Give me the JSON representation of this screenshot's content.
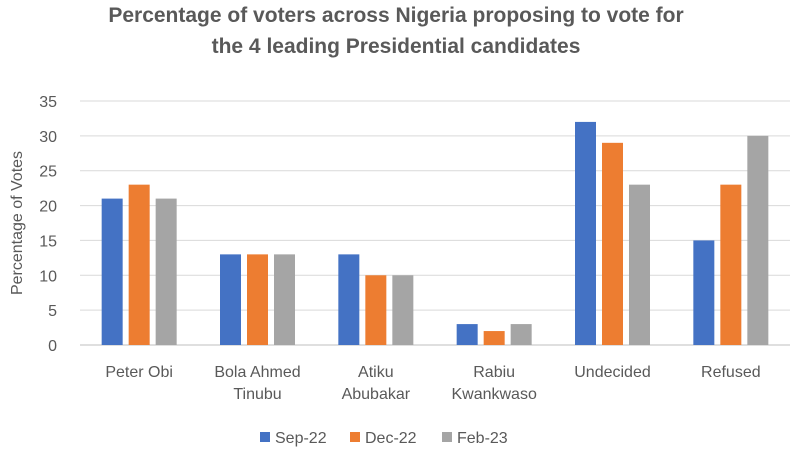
{
  "chart_data": {
    "type": "bar",
    "title_lines": [
      "Percentage of voters across Nigeria proposing to vote for",
      "the 4 leading Presidential candidates"
    ],
    "ylabel": "Percentage of Votes",
    "xlabel": "",
    "ylim": [
      0,
      35
    ],
    "yticks": [
      0,
      5,
      10,
      15,
      20,
      25,
      30,
      35
    ],
    "grid": true,
    "legend_position": "bottom",
    "categories": [
      [
        "Peter Obi"
      ],
      [
        "Bola Ahmed",
        "Tinubu"
      ],
      [
        "Atiku",
        "Abubakar"
      ],
      [
        "Rabiu",
        "Kwankwaso"
      ],
      [
        "Undecided"
      ],
      [
        "Refused"
      ]
    ],
    "series": [
      {
        "name": "Sep-22",
        "color": "#4472C4",
        "values": [
          21,
          13,
          13,
          3,
          32,
          15
        ]
      },
      {
        "name": "Dec-22",
        "color": "#ED7D31",
        "values": [
          23,
          13,
          10,
          2,
          29,
          23
        ]
      },
      {
        "name": "Feb-23",
        "color": "#A5A5A5",
        "values": [
          21,
          13,
          10,
          3,
          23,
          30
        ]
      }
    ]
  }
}
